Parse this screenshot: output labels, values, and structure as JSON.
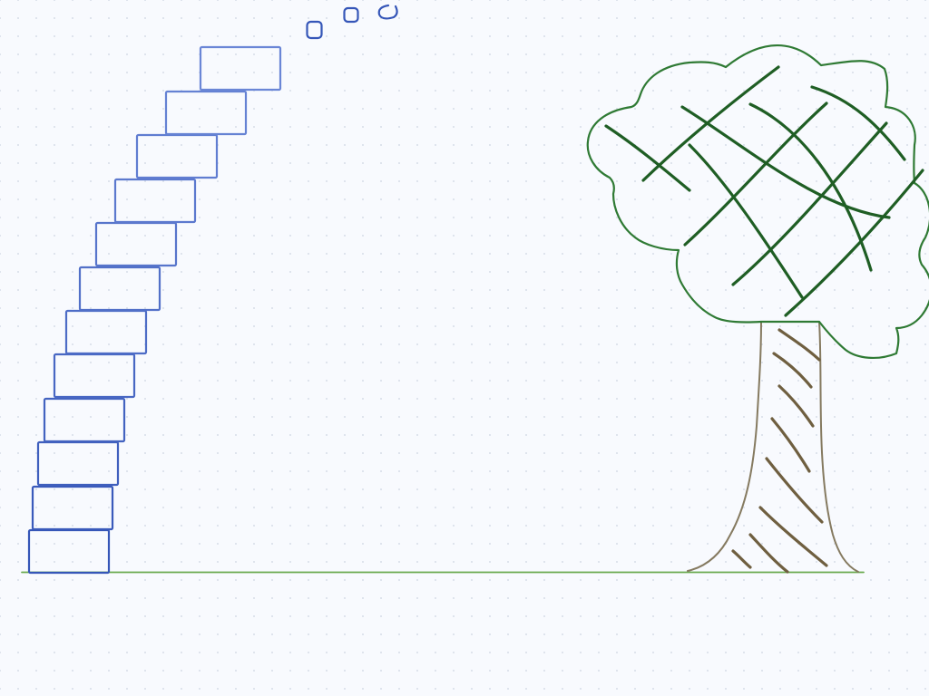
{
  "canvas": {
    "background": "#f8fafe",
    "grid": "dotted",
    "grid_dot_color": "#dde3ec"
  },
  "sketch": {
    "ground_line": {
      "color": "#6aaa4f",
      "icon": "ground-line"
    },
    "staircase": {
      "block_count": 12,
      "shape": "rectangle",
      "color_bottom": "#3556b8",
      "color_top": "#6a86d6",
      "trailing_marks": 3
    },
    "tree": {
      "canopy_outline_color": "#2f7a34",
      "canopy_hatch_color": "#1f5e24",
      "canopy_hatch": "crosshatch",
      "trunk_outline_color": "#857a60",
      "trunk_hatch_color": "#6f5f40",
      "trunk_hatch": "diagonal"
    }
  }
}
